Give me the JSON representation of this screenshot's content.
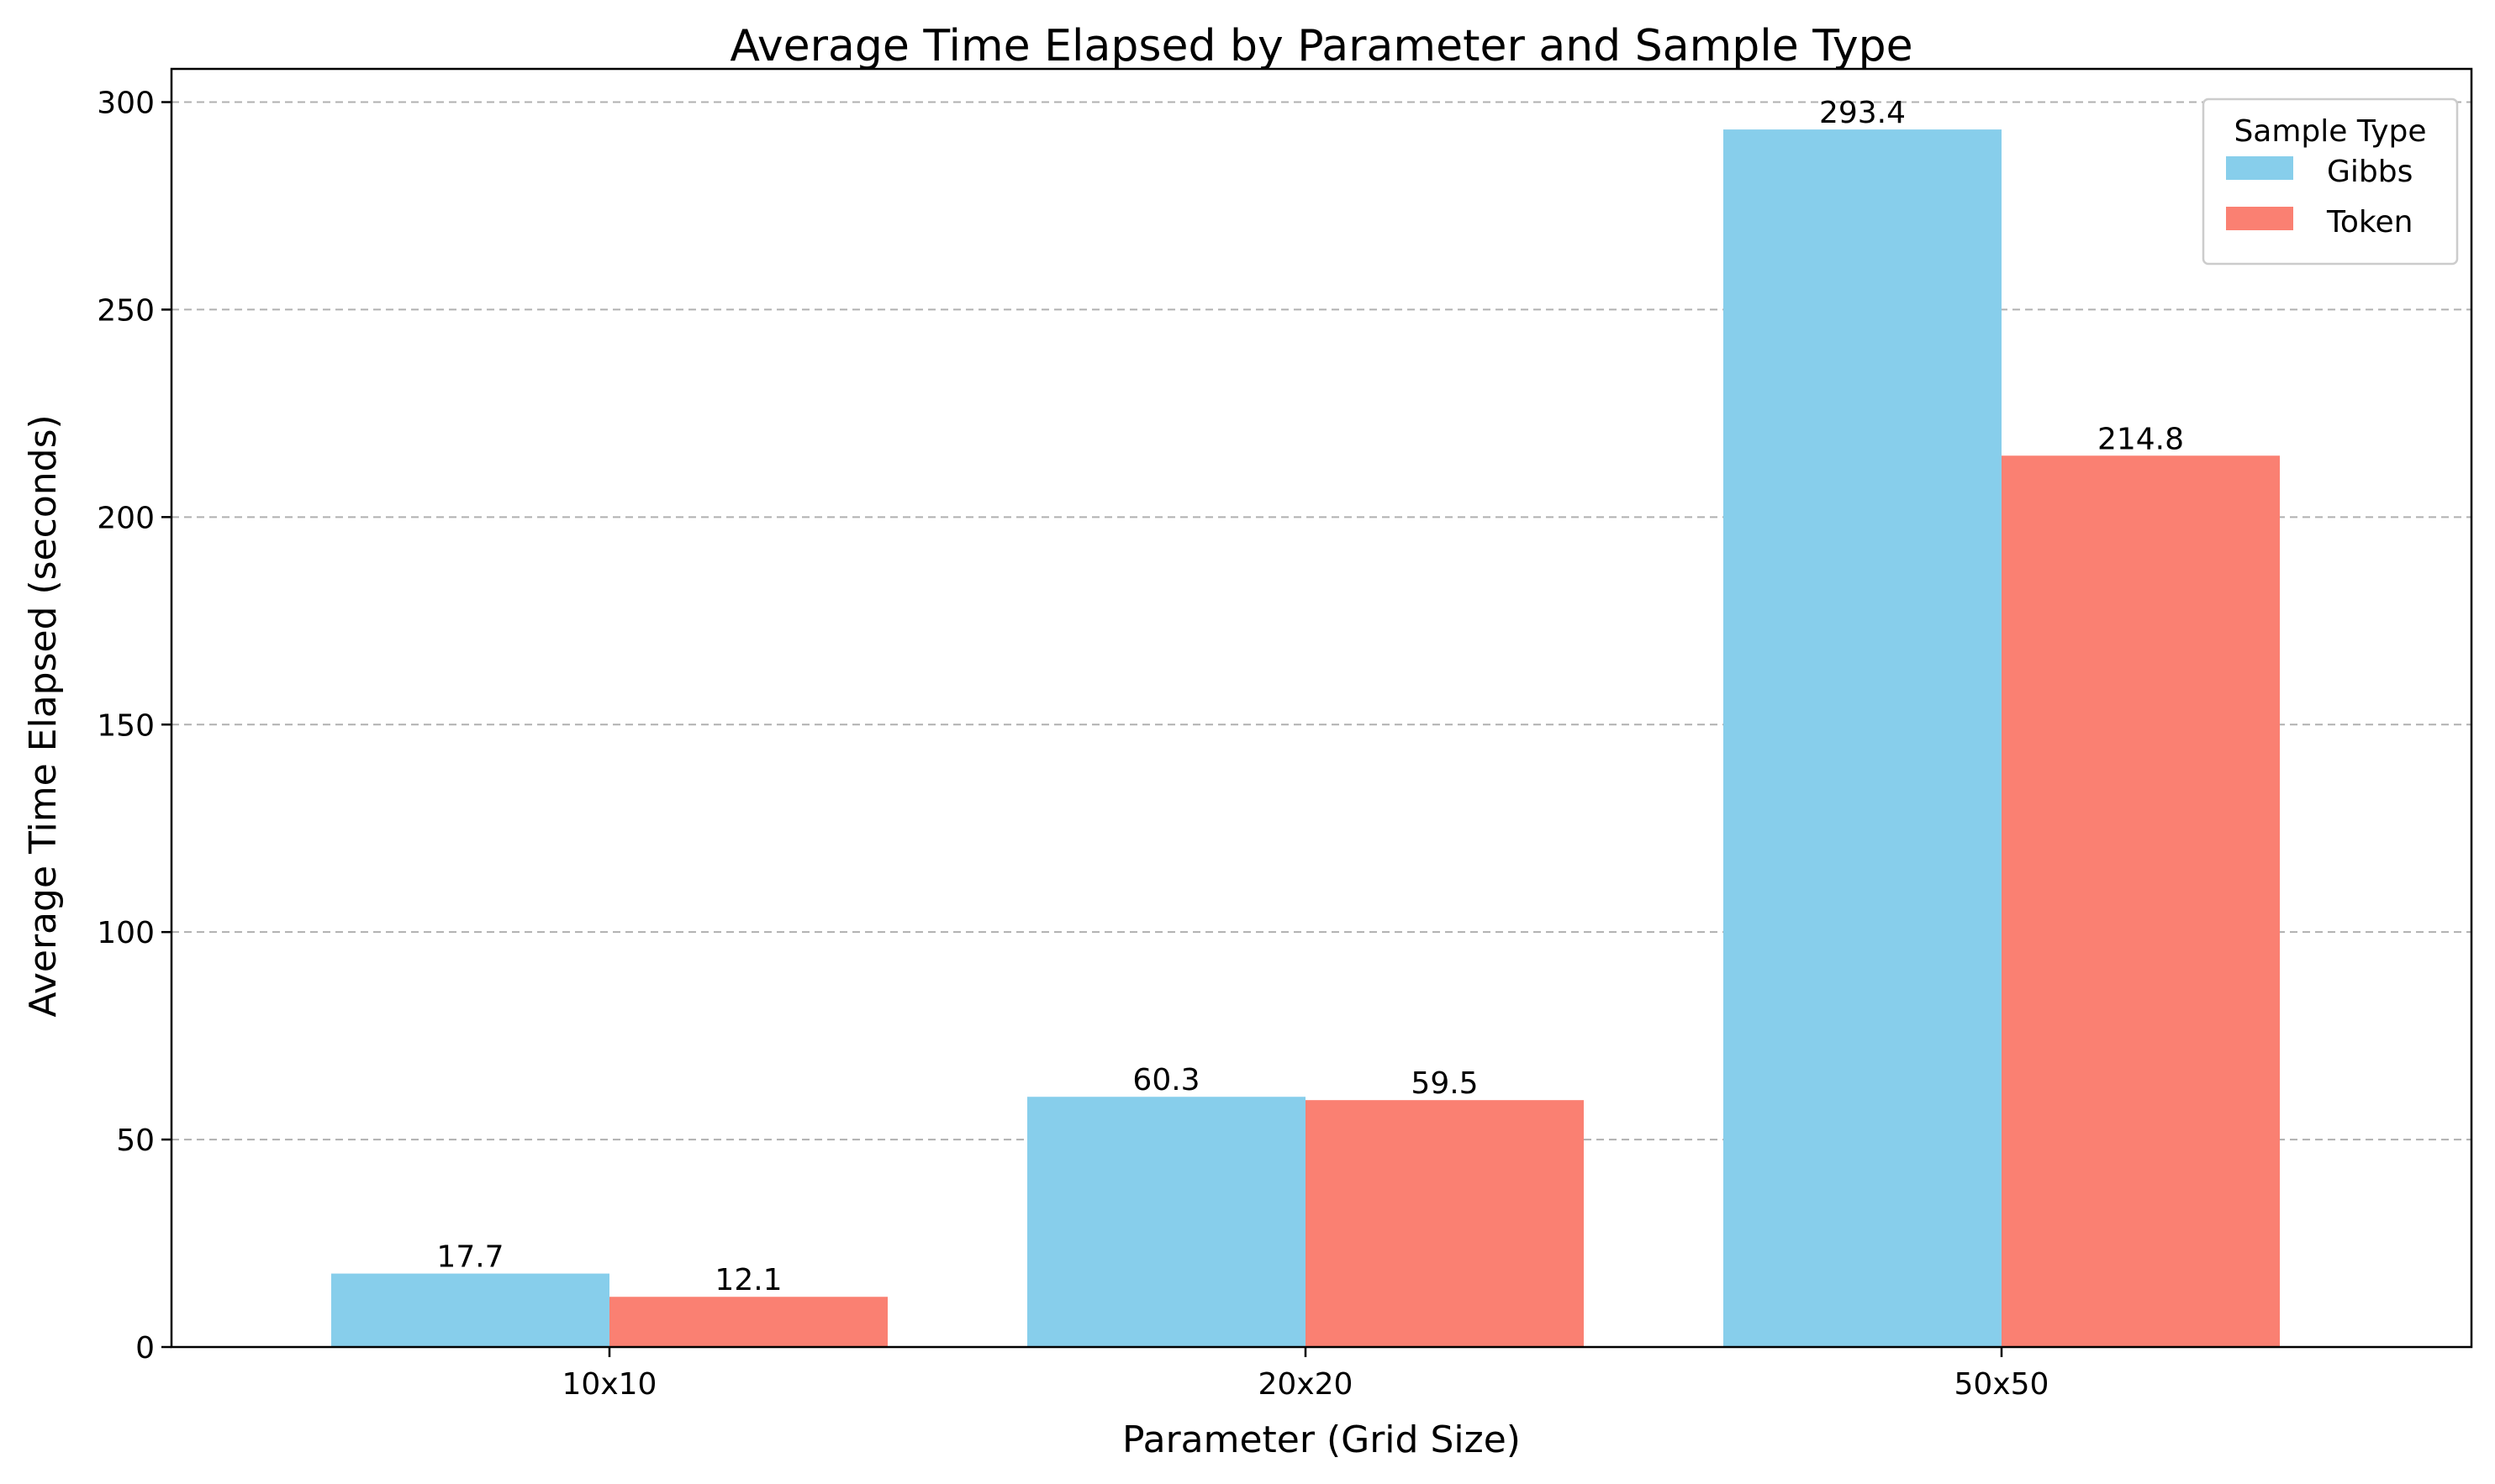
{
  "chart_data": {
    "type": "bar",
    "title": "Average Time Elapsed by Parameter and Sample Type",
    "xlabel": "Parameter (Grid Size)",
    "ylabel": "Average Time Elapsed (seconds)",
    "categories": [
      "10x10",
      "20x20",
      "50x50"
    ],
    "series": [
      {
        "name": "Gibbs",
        "values": [
          17.7,
          60.3,
          293.4
        ],
        "color": "#87ceeb"
      },
      {
        "name": "Token",
        "values": [
          12.1,
          59.5,
          214.8
        ],
        "color": "#fa8072"
      }
    ],
    "ylim": [
      0,
      308
    ],
    "yticks": [
      0,
      50,
      100,
      150,
      200,
      250,
      300
    ],
    "grid": "y-dashed",
    "legend": {
      "title": "Sample Type",
      "position": "top-right"
    }
  }
}
